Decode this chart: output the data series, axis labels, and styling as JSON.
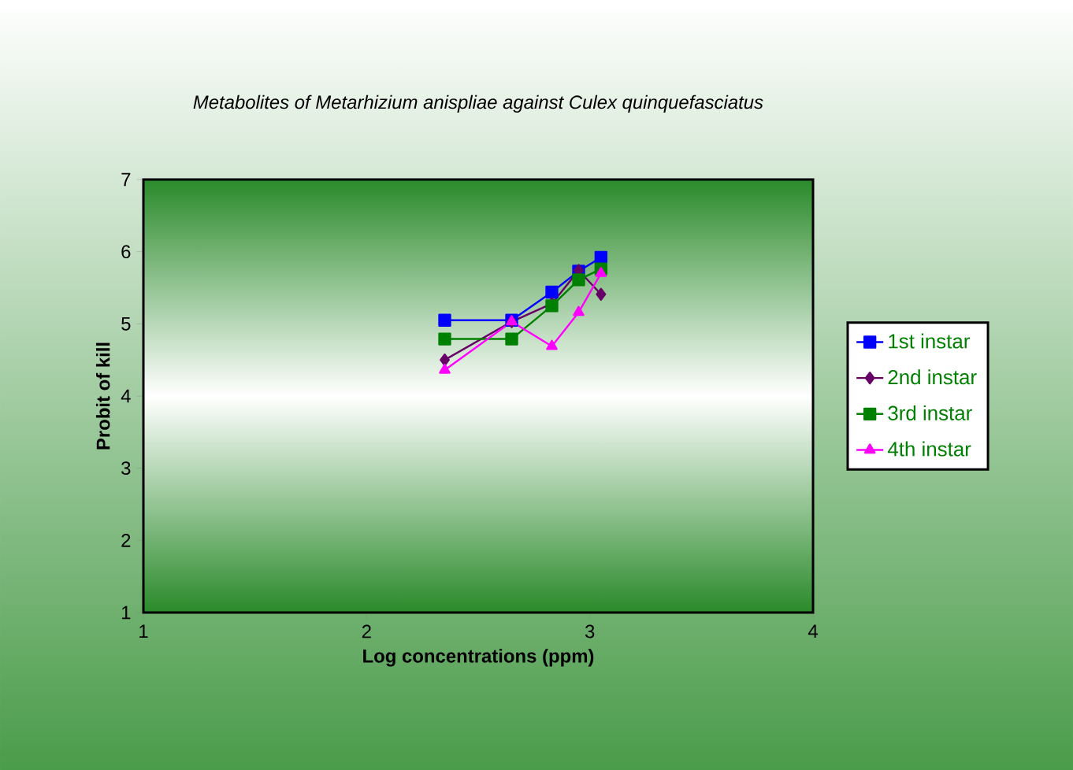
{
  "chart_data": {
    "type": "line",
    "title": "Metabolites of Metarhizium anispliae against Culex quinquefasciatus",
    "xlabel": "Log concentrations (ppm)",
    "ylabel": "Probit of kill",
    "xlim": [
      1,
      4
    ],
    "xticks": [
      1,
      2,
      3,
      4
    ],
    "ylim": [
      1,
      7
    ],
    "yticks": [
      1,
      2,
      3,
      4,
      5,
      6,
      7
    ],
    "legend": "right",
    "grid": false,
    "series": [
      {
        "name": "1st instar",
        "color": "#0000ff",
        "marker": "square",
        "x": [
          2.35,
          2.65,
          2.83,
          2.95,
          3.05
        ],
        "values": [
          5.05,
          5.05,
          5.44,
          5.73,
          5.92
        ]
      },
      {
        "name": "2nd instar",
        "color": "#660066",
        "marker": "diamond",
        "x": [
          2.35,
          2.65,
          2.83,
          2.95,
          3.05
        ],
        "values": [
          4.5,
          5.03,
          5.28,
          5.74,
          5.41
        ]
      },
      {
        "name": "3rd instar",
        "color": "#008000",
        "marker": "square",
        "x": [
          2.35,
          2.65,
          2.83,
          2.95,
          3.05
        ],
        "values": [
          4.79,
          4.79,
          5.25,
          5.61,
          5.76
        ]
      },
      {
        "name": "4th instar",
        "color": "#ff00ff",
        "marker": "triangle",
        "x": [
          2.35,
          2.65,
          2.83,
          2.95,
          3.05
        ],
        "values": [
          4.36,
          5.03,
          4.69,
          5.16,
          5.7
        ]
      }
    ]
  }
}
